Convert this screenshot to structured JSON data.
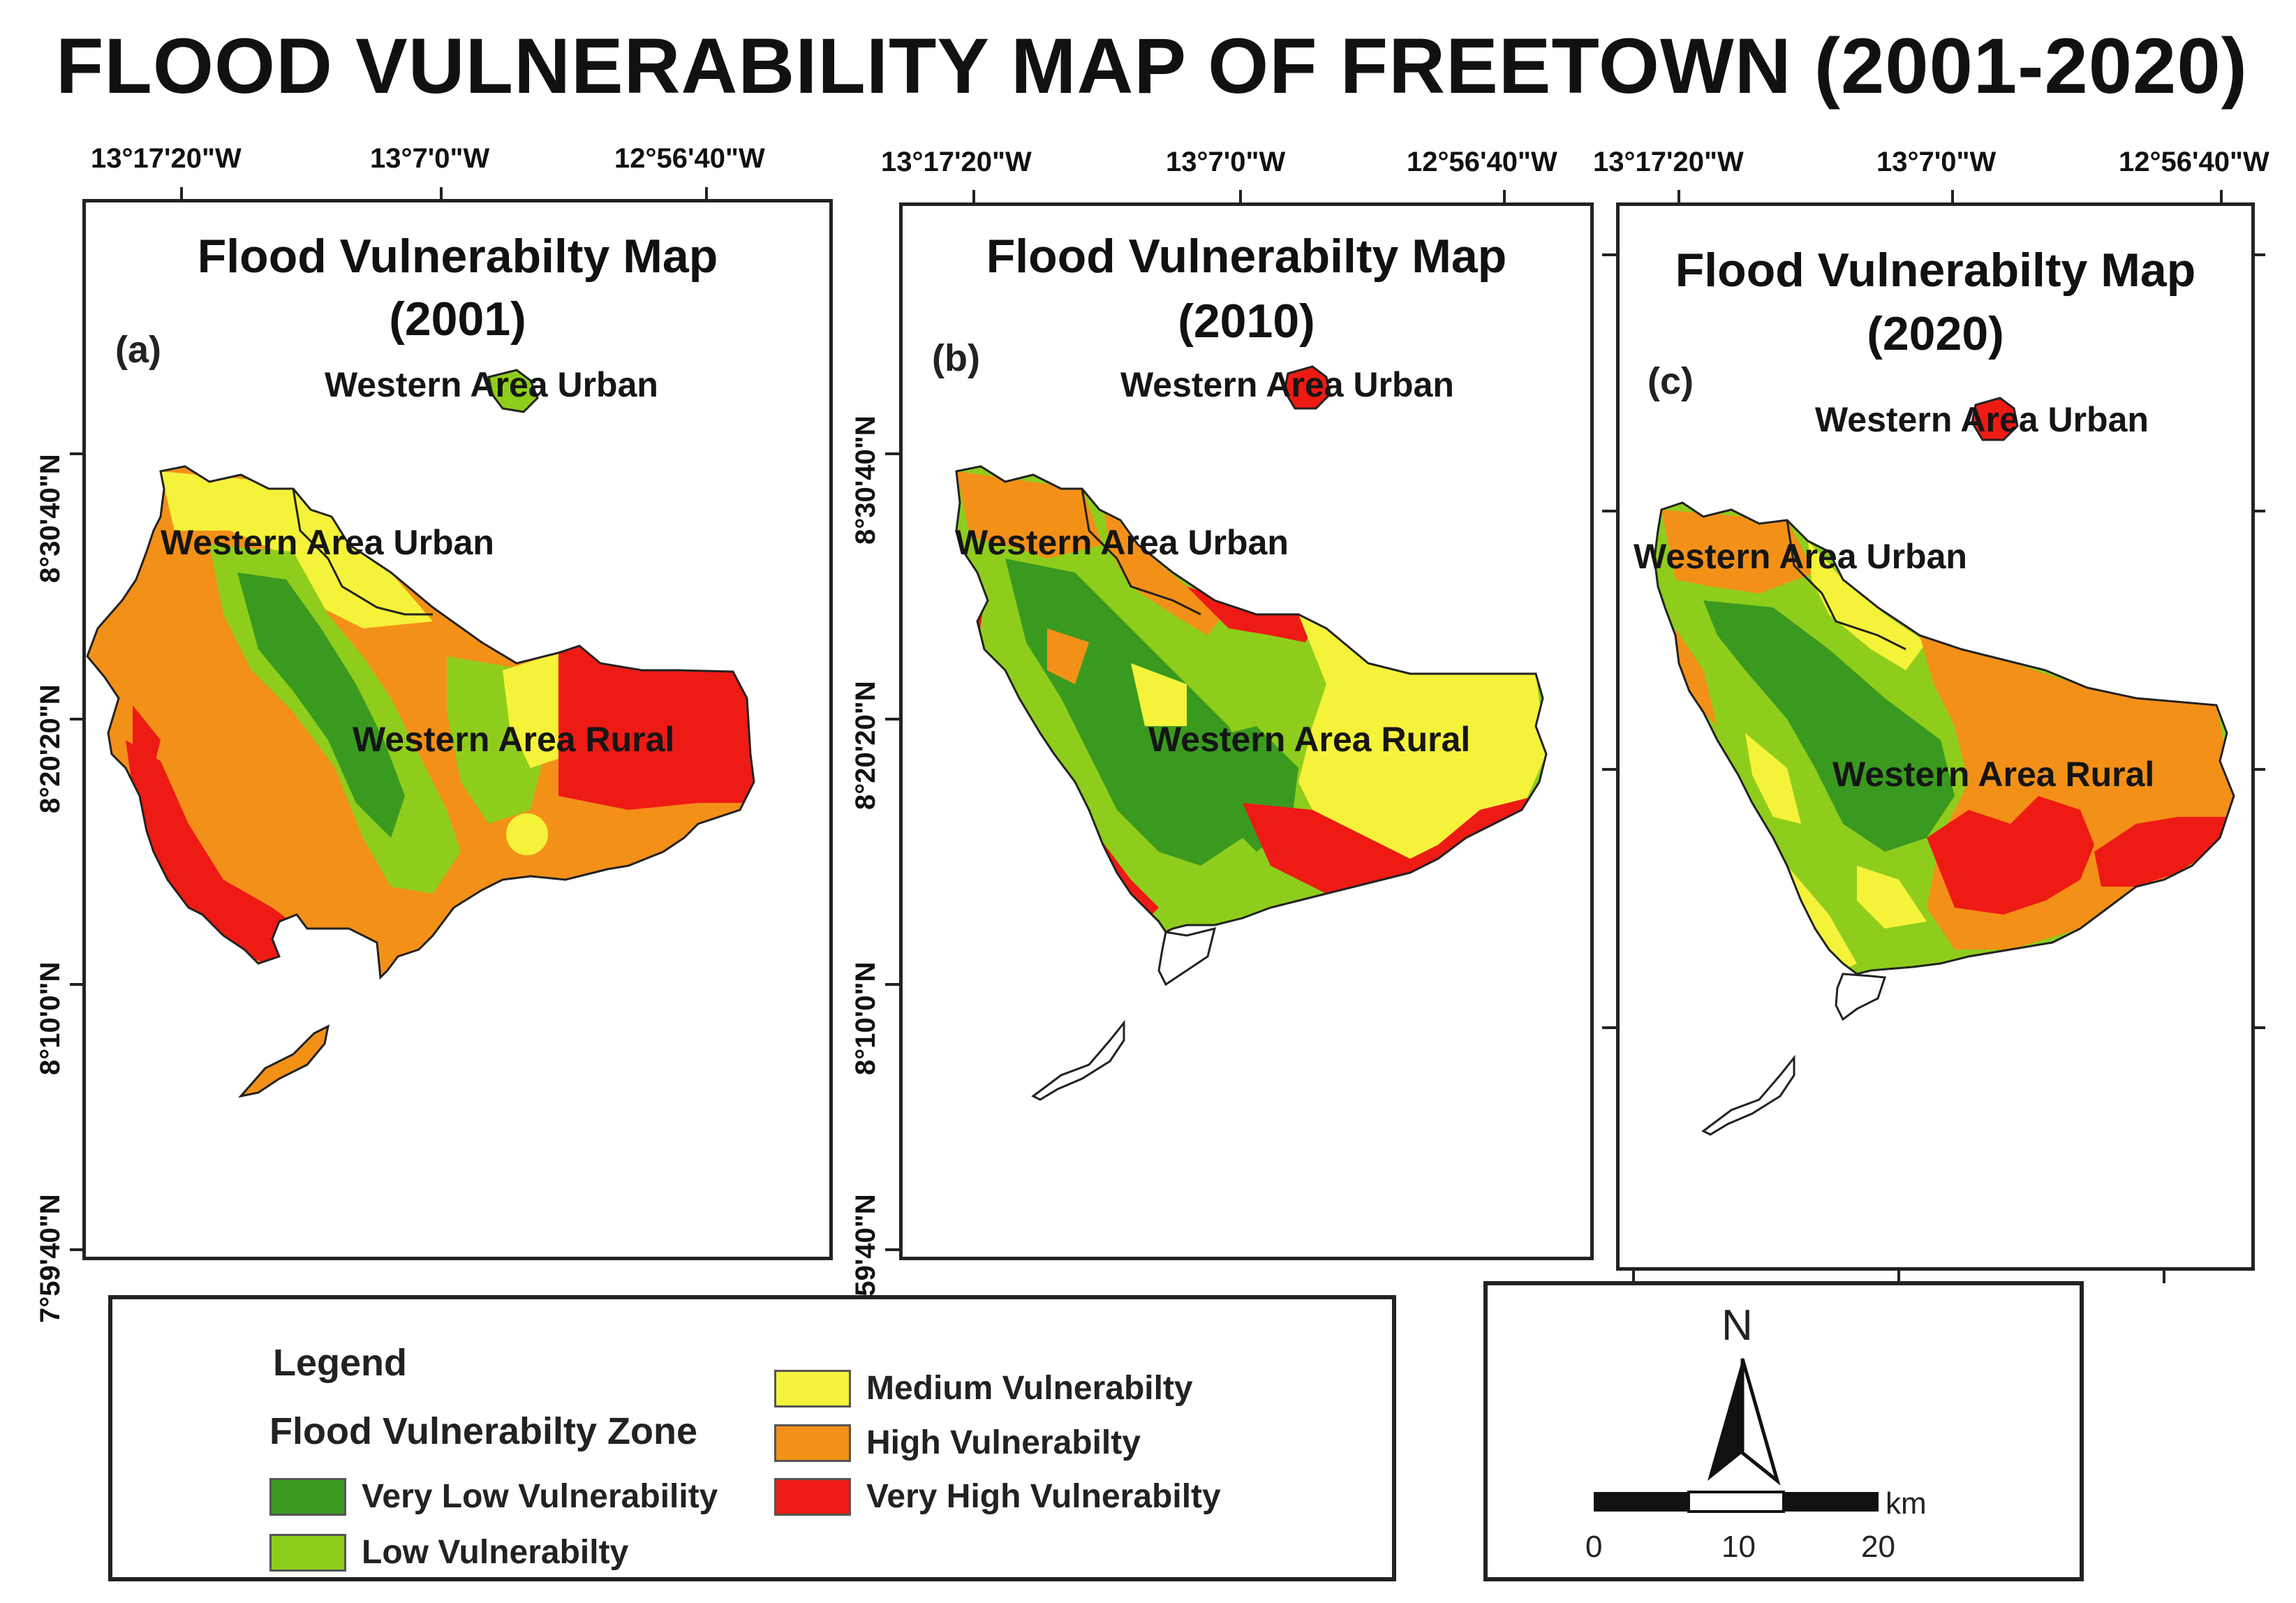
{
  "title": "FLOOD VULNERABILITY MAP OF FREETOWN (2001-2020)",
  "colors": {
    "very_low": "#3a9a1f",
    "low": "#8fcd1c",
    "medium": "#f5f23a",
    "high": "#f39018",
    "very_high": "#ee1a14",
    "outline": "#222222"
  },
  "longitude_labels": [
    "13°17'20\"W",
    "13°7'0\"W",
    "12°56'40\"W"
  ],
  "latitude_labels": [
    "8°30'40\"N",
    "8°20'20\"N",
    "8°10'0\"N",
    "7°59'40\"N"
  ],
  "panels": [
    {
      "id": "a",
      "title_line1": "Flood Vulnerabilty Map",
      "title_line2": "(2001)",
      "panel_label": "(a)",
      "region_labels": [
        "Western Area Urban",
        "Western Area Urban",
        "Western Area Rural"
      ]
    },
    {
      "id": "b",
      "title_line1": "Flood Vulnerabilty Map",
      "title_line2": "(2010)",
      "panel_label": "(b)",
      "region_labels": [
        "Western Area Urban",
        "Western Area Urban",
        "Western Area Rural"
      ]
    },
    {
      "id": "c",
      "title_line1": "Flood Vulnerabilty Map",
      "title_line2": "(2020)",
      "panel_label": "(c)",
      "region_labels": [
        "Western Area Urban",
        "Western Area Urban",
        "Western Area Rural"
      ]
    }
  ],
  "legend": {
    "heading": "Legend",
    "subheading": "Flood Vulnerabilty Zone",
    "items": [
      {
        "label": "Very Low Vulnerability",
        "color": "#3a9a1f"
      },
      {
        "label": "Low Vulnerabilty",
        "color": "#8fcd1c"
      },
      {
        "label": "Medium Vulnerabilty",
        "color": "#f5f23a"
      },
      {
        "label": "High Vulnerabilty",
        "color": "#f39018"
      },
      {
        "label": "Very High Vulnerabilty",
        "color": "#ee1a14"
      }
    ]
  },
  "north_arrow": {
    "label": "N"
  },
  "scale_bar": {
    "unit": "km",
    "ticks": [
      "0",
      "10",
      "20"
    ]
  }
}
